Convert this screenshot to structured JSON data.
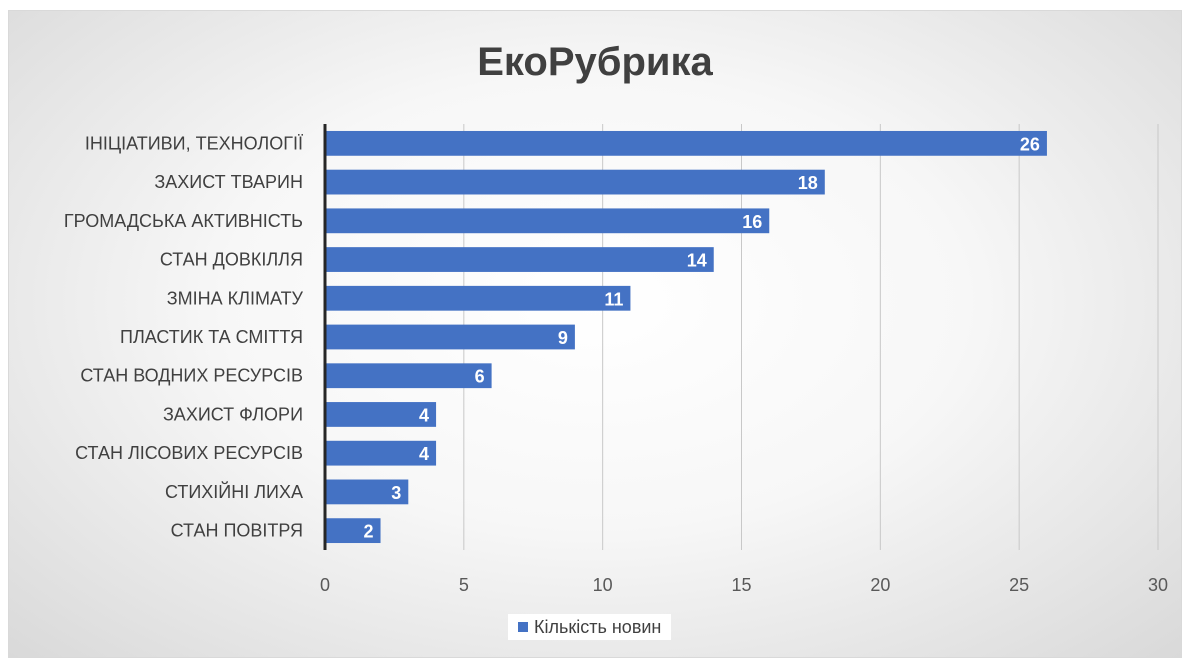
{
  "chart_data": {
    "type": "bar",
    "orientation": "horizontal",
    "title": "ЕкоРубрика",
    "categories": [
      "ІНІЦІАТИВИ, ТЕХНОЛОГІЇ",
      "ЗАХИСТ ТВАРИН",
      "ГРОМАДСЬКА АКТИВНІСТЬ",
      "СТАН ДОВКІЛЛЯ",
      "ЗМІНА КЛІМАТУ",
      "ПЛАСТИК ТА СМІТТЯ",
      "СТАН ВОДНИХ РЕСУРСІВ",
      "ЗАХИСТ ФЛОРИ",
      "СТАН ЛІСОВИХ РЕСУРСІВ",
      "СТИХІЙНІ ЛИХА",
      "СТАН ПОВІТРЯ"
    ],
    "series": [
      {
        "name": "Кількість новин",
        "values": [
          26,
          18,
          16,
          14,
          11,
          9,
          6,
          4,
          4,
          3,
          2
        ]
      }
    ],
    "xlim": [
      0,
      30
    ],
    "xticks": [
      0,
      5,
      10,
      15,
      20,
      25,
      30
    ],
    "grid": "vertical",
    "data_labels": true,
    "legend_position": "bottom",
    "bar_color": "#4472c4"
  }
}
